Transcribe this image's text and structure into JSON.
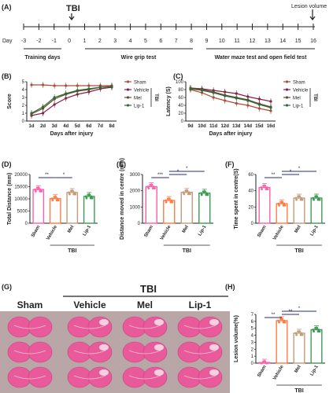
{
  "timeline": {
    "panel_label": "(A)",
    "event_label": "TBI",
    "end_label": "Lesion volume",
    "axis_label": "Day",
    "days": [
      "-3",
      "-2",
      "-1",
      "0",
      "1",
      "2",
      "3",
      "4",
      "5",
      "6",
      "7",
      "8",
      "9",
      "10",
      "11",
      "12",
      "13",
      "14",
      "15",
      "16"
    ],
    "training_label": "Training days",
    "wire_label": "Wire grip test",
    "water_label": "Water maze test and open field test"
  },
  "legend_groups": [
    "Sham",
    "Vehicle",
    "Mel",
    "Lip-1"
  ],
  "group_colors": {
    "Sham": "#b04a3a",
    "Vehicle": "#8a1e46",
    "Mel": "#6b4a2a",
    "Lip-1": "#2e6b3a"
  },
  "bar_colors": {
    "Sham": "#ff5fa8",
    "Vehicle": "#ff7b45",
    "Mel": "#c29b78",
    "Lip-1": "#3d9a55"
  },
  "tbi_label": "TBI",
  "chart_data": [
    {
      "id": "B",
      "panel_label": "(B)",
      "type": "line",
      "ylabel": "Score",
      "xlabel": "Days after injury",
      "x": [
        "1d",
        "2d",
        "3d",
        "4d",
        "5d",
        "6d",
        "7d",
        "8d"
      ],
      "yticks": [
        "0",
        "1",
        "2",
        "3",
        "4",
        "5"
      ],
      "ylim": [
        0,
        5
      ],
      "bracket_label": "TBI",
      "series": [
        {
          "name": "Sham",
          "values": [
            4.6,
            4.6,
            4.5,
            4.5,
            4.5,
            4.5,
            4.5,
            4.5
          ]
        },
        {
          "name": "Vehicle",
          "values": [
            0.7,
            1.0,
            2.1,
            2.9,
            3.4,
            3.7,
            4.1,
            4.3
          ]
        },
        {
          "name": "Mel",
          "values": [
            0.9,
            1.6,
            2.8,
            3.4,
            3.8,
            4.0,
            4.3,
            4.4
          ]
        },
        {
          "name": "Lip-1",
          "values": [
            1.0,
            1.8,
            3.0,
            3.5,
            3.9,
            4.1,
            4.3,
            4.4
          ]
        }
      ]
    },
    {
      "id": "C",
      "panel_label": "(C)",
      "type": "line",
      "ylabel": "Latency (S)",
      "xlabel": "Days after injury",
      "x": [
        "9d",
        "10d",
        "11d",
        "12d",
        "13d",
        "14d",
        "15d",
        "16d"
      ],
      "yticks": [
        "0",
        "20",
        "40",
        "60",
        "80",
        "100"
      ],
      "ylim": [
        0,
        100
      ],
      "bracket_label": "TBI",
      "series": [
        {
          "name": "Sham",
          "values": [
            80,
            72,
            60,
            52,
            45,
            40,
            32,
            26
          ]
        },
        {
          "name": "Vehicle",
          "values": [
            84,
            82,
            78,
            74,
            70,
            62,
            56,
            50
          ]
        },
        {
          "name": "Mel",
          "values": [
            84,
            80,
            74,
            66,
            60,
            54,
            44,
            36
          ]
        },
        {
          "name": "Lip-1",
          "values": [
            82,
            78,
            72,
            64,
            58,
            52,
            42,
            34
          ]
        }
      ]
    },
    {
      "id": "D",
      "panel_label": "(D)",
      "type": "bar",
      "ylabel": "Total Distance (mm)",
      "categories": [
        "Sham",
        "Vehicle",
        "Mel",
        "Lip-1"
      ],
      "values": [
        13800,
        10100,
        12600,
        11000
      ],
      "yticks": [
        "0",
        "5000",
        "10000",
        "15000",
        "20000"
      ],
      "ylim": [
        0,
        20000
      ],
      "stars": [
        "**",
        "*"
      ],
      "group_label": "TBI"
    },
    {
      "id": "E",
      "panel_label": "(E)",
      "type": "bar",
      "ylabel": "Distance moved in centre (mm)",
      "categories": [
        "Sham",
        "Vehicle",
        "Mel",
        "Lip-1"
      ],
      "values": [
        2250,
        1400,
        1900,
        1850
      ],
      "yticks": [
        "0",
        "1000",
        "2000",
        "3000"
      ],
      "ylim": [
        0,
        3000
      ],
      "stars": [
        "***",
        "*",
        "*"
      ],
      "group_label": "TBI"
    },
    {
      "id": "F",
      "panel_label": "(F)",
      "type": "bar",
      "ylabel": "Time spent in centre(S)",
      "categories": [
        "Sham",
        "Vehicle",
        "Mel",
        "Lip-1"
      ],
      "values": [
        44,
        24,
        31,
        31
      ],
      "yticks": [
        "0",
        "20",
        "40",
        "60"
      ],
      "ylim": [
        0,
        60
      ],
      "stars": [
        "**",
        "*",
        "*"
      ],
      "group_label": "TBI"
    },
    {
      "id": "H",
      "panel_label": "(H)",
      "type": "bar",
      "ylabel": "Lesion volume(%)",
      "categories": [
        "Sham",
        "Vehicle",
        "Mel",
        "Lip-1"
      ],
      "values": [
        0,
        6.1,
        4.3,
        4.8
      ],
      "yticks": [
        "0",
        "1",
        "2",
        "3",
        "4",
        "5",
        "6",
        "7"
      ],
      "ylim": [
        0,
        7
      ],
      "stars": [
        "**",
        "**",
        "*"
      ],
      "group_label": "TBI"
    }
  ],
  "histology": {
    "panel_label": "(G)",
    "tbi_label": "TBI",
    "columns": [
      "Sham",
      "Vehicle",
      "Mel",
      "Lip-1"
    ]
  }
}
